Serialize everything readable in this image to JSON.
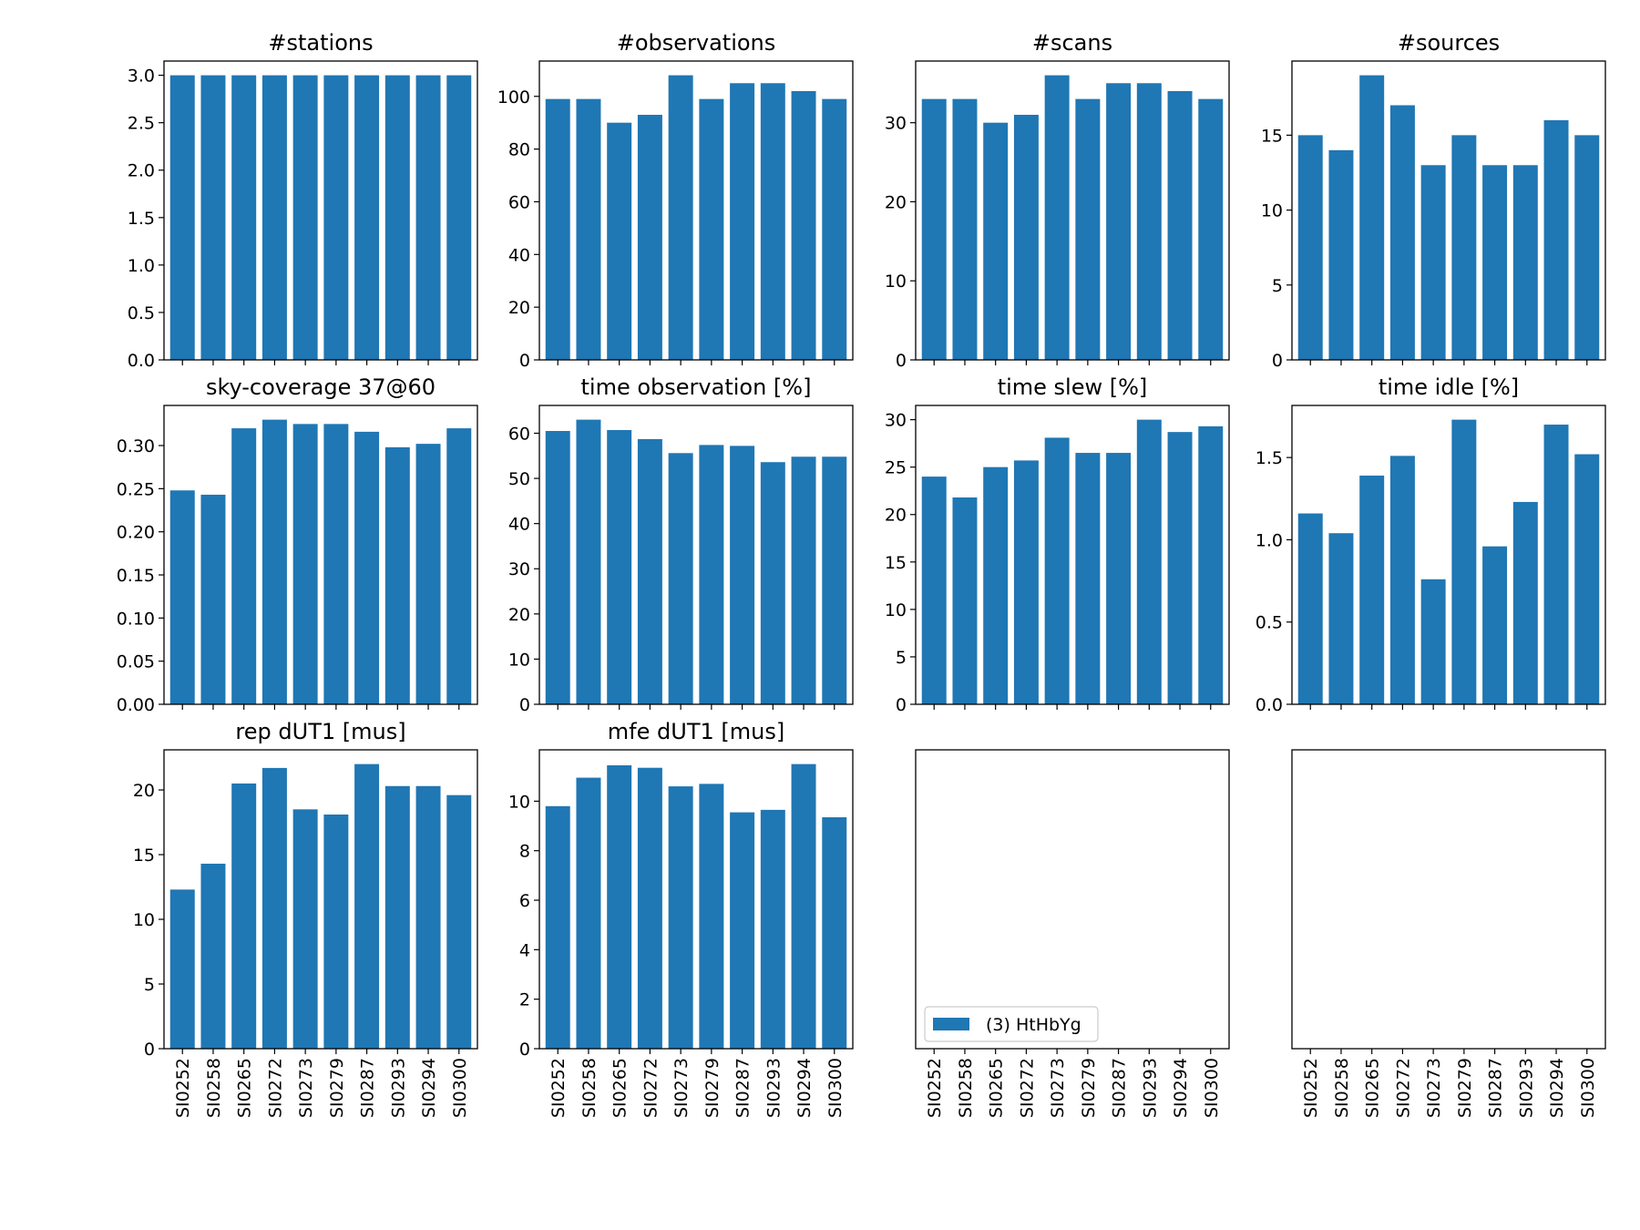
{
  "bar_color": "#1f77b4",
  "categories": [
    "SI0252",
    "SI0258",
    "SI0265",
    "SI0272",
    "SI0273",
    "SI0279",
    "SI0287",
    "SI0293",
    "SI0294",
    "SI0300"
  ],
  "legend": {
    "label": "(3) HtHbYg",
    "placement": "lower-left",
    "panel": "empty-1"
  },
  "chart_data": [
    {
      "type": "bar",
      "title": "#stations",
      "ylim": [
        0,
        3.15
      ],
      "yticks": [
        "0.0",
        "0.5",
        "1.0",
        "1.5",
        "2.0",
        "2.5",
        "3.0"
      ],
      "ytick_values": [
        0,
        0.5,
        1,
        1.5,
        2,
        2.5,
        3
      ],
      "values": [
        3,
        3,
        3,
        3,
        3,
        3,
        3,
        3,
        3,
        3
      ],
      "show_xticklabels": false
    },
    {
      "type": "bar",
      "title": "#observations",
      "ylim": [
        0,
        113.4
      ],
      "yticks": [
        "0",
        "20",
        "40",
        "60",
        "80",
        "100"
      ],
      "ytick_values": [
        0,
        20,
        40,
        60,
        80,
        100
      ],
      "values": [
        99,
        99,
        90,
        93,
        108,
        99,
        105,
        105,
        102,
        99
      ],
      "show_xticklabels": false
    },
    {
      "type": "bar",
      "title": "#scans",
      "ylim": [
        0,
        37.8
      ],
      "yticks": [
        "0",
        "10",
        "20",
        "30"
      ],
      "ytick_values": [
        0,
        10,
        20,
        30
      ],
      "values": [
        33,
        33,
        30,
        31,
        36,
        33,
        35,
        35,
        34,
        33
      ],
      "show_xticklabels": false
    },
    {
      "type": "bar",
      "title": "#sources",
      "ylim": [
        0,
        19.95
      ],
      "yticks": [
        "0",
        "5",
        "10",
        "15"
      ],
      "ytick_values": [
        0,
        5,
        10,
        15
      ],
      "values": [
        15,
        14,
        19,
        17,
        13,
        15,
        13,
        13,
        16,
        15
      ],
      "show_xticklabels": false
    },
    {
      "type": "bar",
      "title": "sky-coverage 37@60",
      "ylim": [
        0,
        0.3465
      ],
      "yticks": [
        "0.00",
        "0.05",
        "0.10",
        "0.15",
        "0.20",
        "0.25",
        "0.30"
      ],
      "ytick_values": [
        0,
        0.05,
        0.1,
        0.15,
        0.2,
        0.25,
        0.3
      ],
      "values": [
        0.248,
        0.243,
        0.32,
        0.33,
        0.325,
        0.325,
        0.316,
        0.298,
        0.302,
        0.32
      ],
      "show_xticklabels": false
    },
    {
      "type": "bar",
      "title": "time observation [%]",
      "ylim": [
        0,
        66.15
      ],
      "yticks": [
        "0",
        "10",
        "20",
        "30",
        "40",
        "50",
        "60"
      ],
      "ytick_values": [
        0,
        10,
        20,
        30,
        40,
        50,
        60
      ],
      "values": [
        60.5,
        63,
        60.7,
        58.7,
        55.6,
        57.4,
        57.2,
        53.6,
        54.8,
        54.8
      ],
      "show_xticklabels": false
    },
    {
      "type": "bar",
      "title": "time slew [%]",
      "ylim": [
        0,
        31.5
      ],
      "yticks": [
        "0",
        "5",
        "10",
        "15",
        "20",
        "25",
        "30"
      ],
      "ytick_values": [
        0,
        5,
        10,
        15,
        20,
        25,
        30
      ],
      "values": [
        24,
        21.8,
        25,
        25.7,
        28.1,
        26.5,
        26.5,
        30,
        28.7,
        29.3
      ],
      "show_xticklabels": false
    },
    {
      "type": "bar",
      "title": "time idle [%]",
      "ylim": [
        0,
        1.8165
      ],
      "yticks": [
        "0.0",
        "0.5",
        "1.0",
        "1.5"
      ],
      "ytick_values": [
        0,
        0.5,
        1,
        1.5
      ],
      "values": [
        1.16,
        1.04,
        1.39,
        1.51,
        0.76,
        1.73,
        0.96,
        1.23,
        1.7,
        1.52
      ],
      "show_xticklabels": false
    },
    {
      "type": "bar",
      "title": "rep dUT1 [mus]",
      "ylim": [
        0,
        23.1
      ],
      "yticks": [
        "0",
        "5",
        "10",
        "15",
        "20"
      ],
      "ytick_values": [
        0,
        5,
        10,
        15,
        20
      ],
      "values": [
        12.3,
        14.3,
        20.5,
        21.7,
        18.5,
        18.1,
        22,
        20.3,
        20.3,
        19.6
      ],
      "show_xticklabels": true
    },
    {
      "type": "bar",
      "title": "mfe dUT1 [mus]",
      "ylim": [
        0,
        12.075
      ],
      "yticks": [
        "0",
        "2",
        "4",
        "6",
        "8",
        "10"
      ],
      "ytick_values": [
        0,
        2,
        4,
        6,
        8,
        10
      ],
      "values": [
        9.8,
        10.95,
        11.45,
        11.35,
        10.6,
        10.7,
        9.55,
        9.65,
        11.5,
        9.35
      ],
      "show_xticklabels": true
    },
    {
      "type": "bar",
      "title": "",
      "empty": true,
      "values": [],
      "show_xticklabels": true,
      "legend": true
    },
    {
      "type": "bar",
      "title": "",
      "empty": true,
      "values": [],
      "show_xticklabels": true
    }
  ]
}
